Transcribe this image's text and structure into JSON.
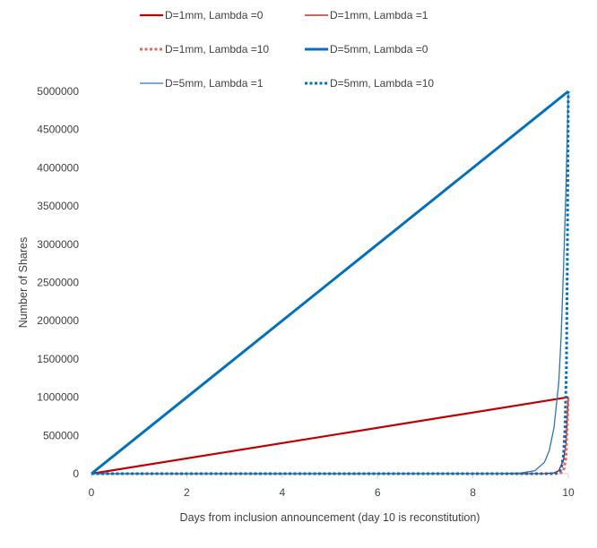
{
  "chart_data": {
    "type": "line",
    "title": "",
    "xlabel": "Days from inclusion announcement (day 10 is reconstitution)",
    "ylabel": "Number of Shares",
    "xlim": [
      0,
      10
    ],
    "ylim": [
      0,
      5000000
    ],
    "x_ticks": [
      0,
      2,
      4,
      6,
      8,
      10
    ],
    "y_ticks": [
      0,
      500000,
      1000000,
      1500000,
      2000000,
      2500000,
      3000000,
      3500000,
      4000000,
      4500000,
      5000000
    ],
    "grid": false,
    "legend_position": "top",
    "series": [
      {
        "name": "D=1mm, Lambda =0",
        "color": "#C00000",
        "style": "solid",
        "weight": "medium",
        "x": [
          0,
          10
        ],
        "y": [
          0,
          1000000
        ]
      },
      {
        "name": "D=1mm, Lambda =1",
        "color": "#C00000",
        "style": "solid",
        "weight": "thin",
        "x": [
          0,
          9,
          9.5,
          9.7,
          9.8,
          9.9,
          9.95,
          10
        ],
        "y": [
          0,
          0,
          1000,
          10000,
          40000,
          180000,
          400000,
          1000000
        ]
      },
      {
        "name": "D=1mm, Lambda =10",
        "color": "#E06666",
        "style": "dotted",
        "weight": "thick",
        "x": [
          0,
          9.7,
          9.8,
          9.85,
          9.9,
          9.95,
          10
        ],
        "y": [
          0,
          0,
          5000,
          15000,
          45000,
          200000,
          1000000
        ]
      },
      {
        "name": "D=5mm, Lambda =0",
        "color": "#0070C0",
        "style": "solid",
        "weight": "thick",
        "x": [
          0,
          10
        ],
        "y": [
          0,
          5000000
        ]
      },
      {
        "name": "D=5mm, Lambda =1",
        "color": "#2E75B6",
        "style": "solid",
        "weight": "thin",
        "x": [
          0,
          8.5,
          9.0,
          9.3,
          9.5,
          9.6,
          9.7,
          9.8,
          9.85,
          9.9,
          9.95,
          10
        ],
        "y": [
          0,
          1000,
          8000,
          40000,
          150000,
          300000,
          600000,
          1200000,
          1800000,
          2700000,
          3700000,
          5000000
        ]
      },
      {
        "name": "D=5mm, Lambda =10",
        "color": "#0070C0",
        "style": "dotted",
        "weight": "thick",
        "x": [
          0,
          9.7,
          9.8,
          9.85,
          9.9,
          9.93,
          9.96,
          9.98,
          10
        ],
        "y": [
          0,
          0,
          20000,
          60000,
          250000,
          600000,
          1400000,
          2800000,
          5000000
        ]
      }
    ]
  }
}
